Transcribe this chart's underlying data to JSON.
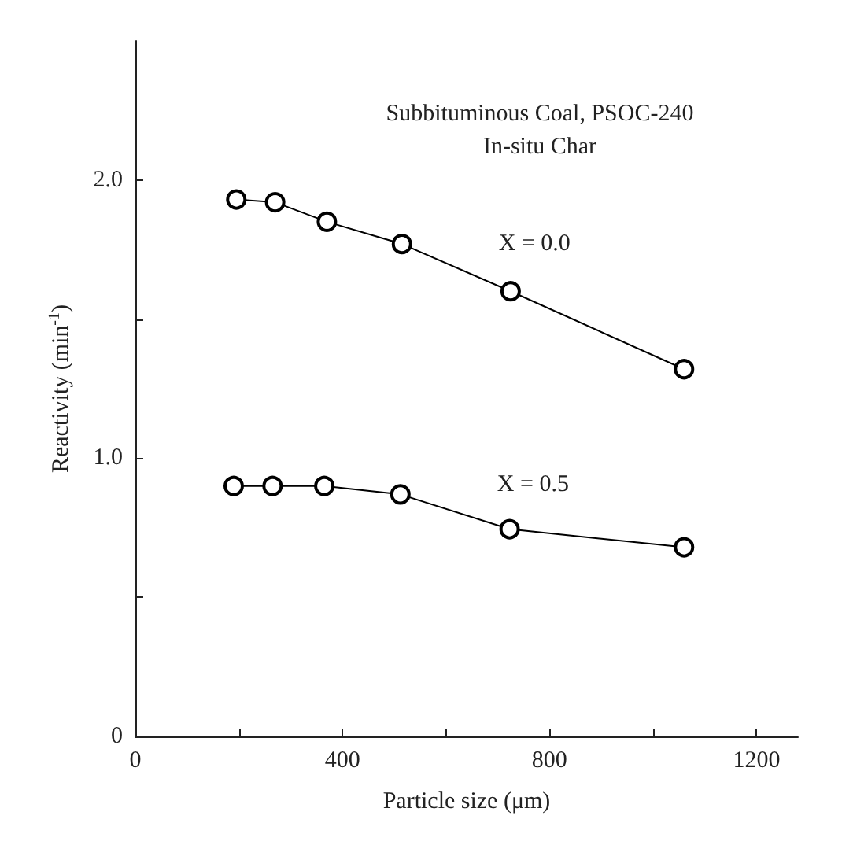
{
  "chart_data": {
    "type": "line",
    "title": "Subbituminous Coal, PSOC-240",
    "subtitle": "In-situ Char",
    "xlabel": "Particle size (μm)",
    "ylabel": "Reactivity (min$^{-1}$)",
    "series": [
      {
        "name": "X = 0.0",
        "color": "#000000",
        "x": [
          195,
          270,
          370,
          515,
          725,
          1060
        ],
        "values": [
          1.93,
          1.92,
          1.85,
          1.77,
          1.6,
          1.32
        ]
      },
      {
        "name": "X = 0.5",
        "color": "#000000",
        "x": [
          190,
          265,
          365,
          512,
          723,
          1060
        ],
        "values": [
          0.9,
          0.9,
          0.9,
          0.87,
          0.745,
          0.68
        ]
      }
    ],
    "xlim": [
      0,
      1280
    ],
    "xticks": [
      0,
      {
        "value": 200,
        "label": null
      },
      400,
      {
        "value": 600,
        "label": null
      },
      800,
      {
        "value": 1000,
        "label": null
      },
      1200
    ],
    "ylim": [
      0,
      2.5
    ],
    "yticks": [
      0,
      {
        "value": 0.5,
        "label": null
      },
      {
        "value": 1,
        "label": "1.0"
      },
      {
        "value": 1.5,
        "label": null
      },
      {
        "value": 2,
        "label": "2.0"
      }
    ],
    "grid": false,
    "legend": false,
    "marker": "circle",
    "line_style": "solid"
  }
}
